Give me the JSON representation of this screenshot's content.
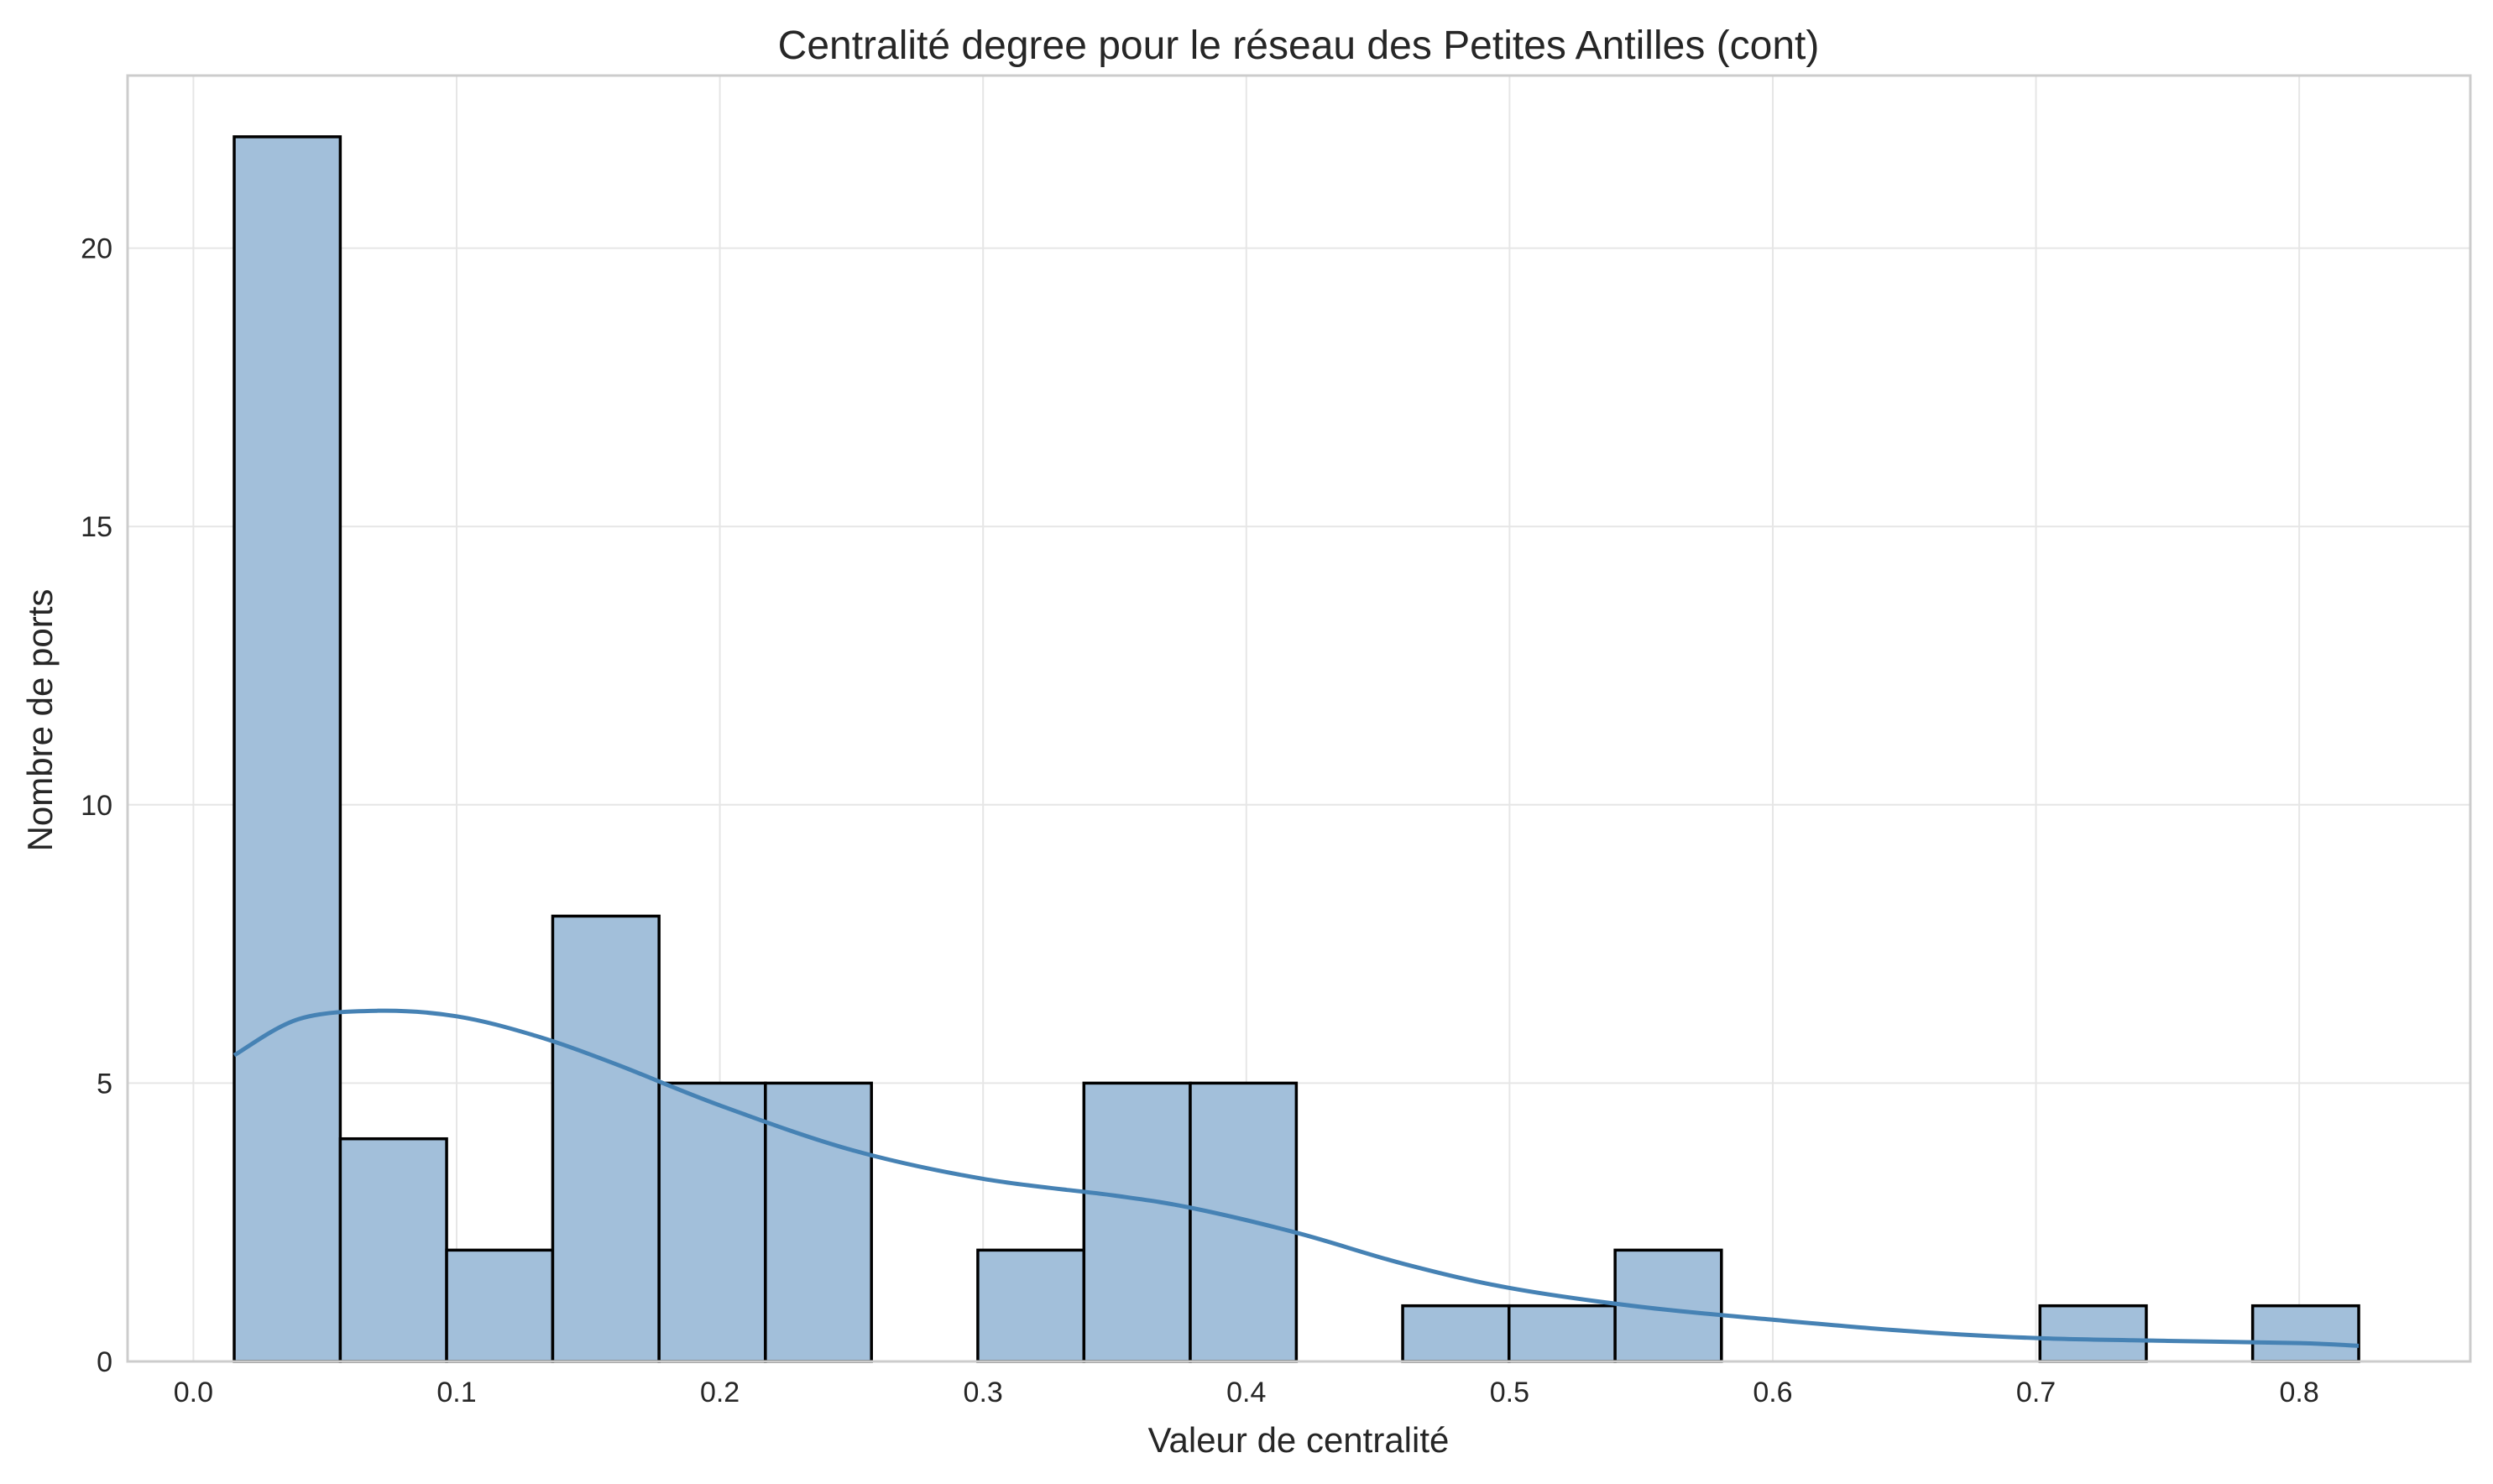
{
  "chart_data": {
    "type": "bar",
    "title": "Centralité degree pour le réseau des Petites Antilles (cont)",
    "xlabel": "Valeur de centralité",
    "ylabel": "Nombre de ports",
    "xlim": [
      -0.025,
      0.865
    ],
    "ylim": [
      0,
      23.1
    ],
    "xticks": [
      0.0,
      0.1,
      0.2,
      0.3,
      0.4,
      0.5,
      0.6,
      0.7,
      0.8
    ],
    "xtick_labels": [
      "0.0",
      "0.1",
      "0.2",
      "0.3",
      "0.4",
      "0.5",
      "0.6",
      "0.7",
      "0.8"
    ],
    "yticks": [
      0,
      5,
      10,
      15,
      20
    ],
    "ytick_labels": [
      "0",
      "5",
      "10",
      "15",
      "20"
    ],
    "grid": true,
    "bar_color": "#a2bfda",
    "kde_color": "#4682b4",
    "bins": [
      {
        "x0": 0.0155,
        "x1": 0.0558,
        "count": 22
      },
      {
        "x0": 0.0558,
        "x1": 0.0962,
        "count": 4
      },
      {
        "x0": 0.0962,
        "x1": 0.1365,
        "count": 2
      },
      {
        "x0": 0.1365,
        "x1": 0.1769,
        "count": 8
      },
      {
        "x0": 0.1769,
        "x1": 0.2173,
        "count": 5
      },
      {
        "x0": 0.2173,
        "x1": 0.2576,
        "count": 5
      },
      {
        "x0": 0.2576,
        "x1": 0.298,
        "count": 0
      },
      {
        "x0": 0.298,
        "x1": 0.3383,
        "count": 2
      },
      {
        "x0": 0.3383,
        "x1": 0.3787,
        "count": 5
      },
      {
        "x0": 0.3787,
        "x1": 0.419,
        "count": 5
      },
      {
        "x0": 0.419,
        "x1": 0.4594,
        "count": 0
      },
      {
        "x0": 0.4594,
        "x1": 0.4998,
        "count": 1
      },
      {
        "x0": 0.4998,
        "x1": 0.5401,
        "count": 1
      },
      {
        "x0": 0.5401,
        "x1": 0.5805,
        "count": 2
      },
      {
        "x0": 0.5805,
        "x1": 0.6208,
        "count": 0
      },
      {
        "x0": 0.6208,
        "x1": 0.6612,
        "count": 0
      },
      {
        "x0": 0.6612,
        "x1": 0.7015,
        "count": 0
      },
      {
        "x0": 0.7015,
        "x1": 0.7419,
        "count": 1
      },
      {
        "x0": 0.7419,
        "x1": 0.7823,
        "count": 0
      },
      {
        "x0": 0.7823,
        "x1": 0.8226,
        "count": 1
      }
    ],
    "kde": {
      "x": [
        0.0155,
        0.04,
        0.07,
        0.1,
        0.13,
        0.16,
        0.2,
        0.25,
        0.3,
        0.35,
        0.38,
        0.42,
        0.46,
        0.5,
        0.55,
        0.6,
        0.65,
        0.7,
        0.75,
        0.8,
        0.8226
      ],
      "y": [
        5.5,
        6.15,
        6.3,
        6.2,
        5.85,
        5.35,
        4.6,
        3.8,
        3.28,
        2.98,
        2.75,
        2.3,
        1.75,
        1.32,
        0.98,
        0.75,
        0.55,
        0.42,
        0.37,
        0.33,
        0.28
      ]
    }
  }
}
